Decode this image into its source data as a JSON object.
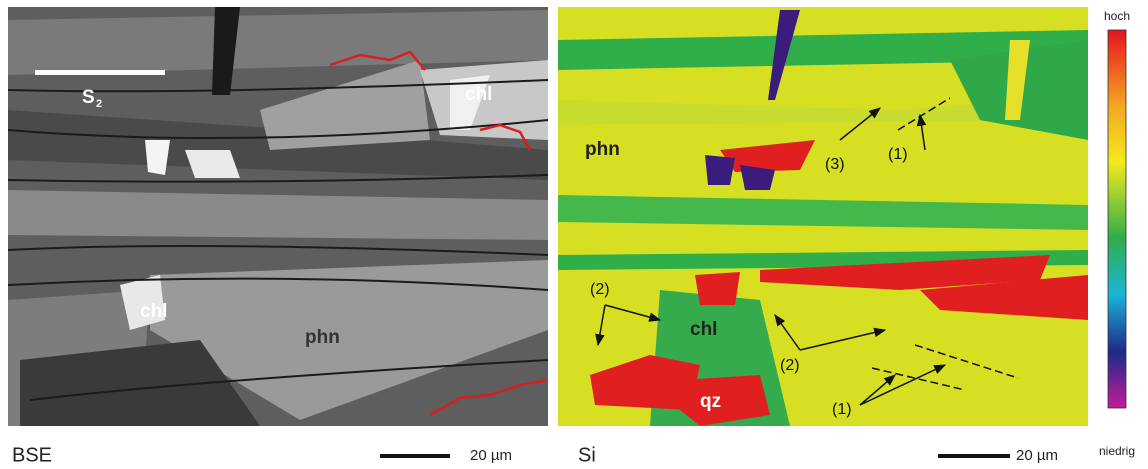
{
  "left_panel": {
    "caption": "BSE",
    "scale_label": "20 µm",
    "foliation": {
      "label": "S",
      "subscript": "2"
    },
    "minerals": [
      "chl",
      "chl",
      "phn"
    ]
  },
  "right_panel": {
    "caption": "Si",
    "scale_label": "20 µm",
    "minerals": [
      "phn",
      "chl",
      "qz"
    ],
    "markers": [
      "(3)",
      "(1)",
      "(2)",
      "(2)",
      "(1)"
    ]
  },
  "color_scale": {
    "top": "hoch",
    "bottom": "niedrig"
  }
}
